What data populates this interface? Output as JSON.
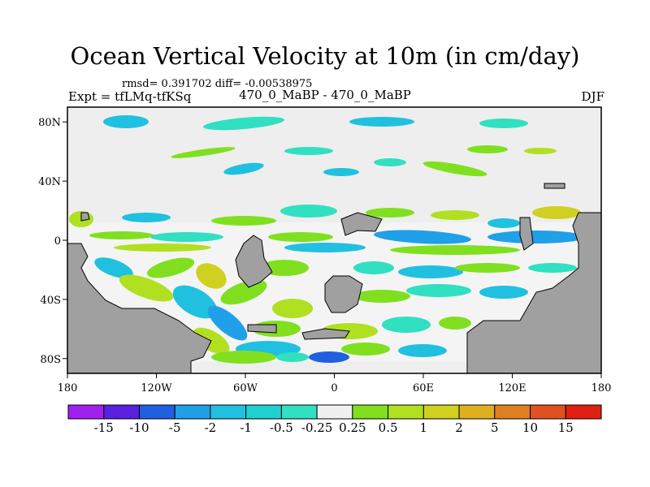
{
  "chart_data": {
    "type": "heatmap",
    "title": "Ocean Vertical Velocity at 10m (in cm/day)",
    "stats_text": "rmsd= 0.391702 diff= -0.00538975",
    "left_label": "Expt = tfLMq-tfKSq",
    "center_label": "470_0_MaBP - 470_0_MaBP",
    "right_label": "DJF",
    "xlim": [
      -180,
      180
    ],
    "ylim": [
      -90,
      90
    ],
    "x_ticks": [
      {
        "value": -180,
        "label": "180"
      },
      {
        "value": -120,
        "label": "120W"
      },
      {
        "value": -60,
        "label": "60W"
      },
      {
        "value": 0,
        "label": "0"
      },
      {
        "value": 60,
        "label": "60E"
      },
      {
        "value": 120,
        "label": "120E"
      },
      {
        "value": 180,
        "label": "180"
      }
    ],
    "y_ticks": [
      {
        "value": 80,
        "label": "80N"
      },
      {
        "value": 40,
        "label": "40N"
      },
      {
        "value": 0,
        "label": "0"
      },
      {
        "value": -40,
        "label": "40S"
      },
      {
        "value": -80,
        "label": "80S"
      }
    ],
    "colorbar": {
      "labels": [
        "-15",
        "-10",
        "-5",
        "-2",
        "-1",
        "-0.5",
        "-0.25",
        "0.25",
        "0.5",
        "1",
        "2",
        "5",
        "10",
        "15"
      ],
      "colors": [
        "#a020f0",
        "#5a20e0",
        "#2060e0",
        "#20a0e8",
        "#20c0e0",
        "#20d0d0",
        "#30e0c0",
        "#f0f0f0",
        "#80e020",
        "#b0e020",
        "#d0d020",
        "#e0b020",
        "#e08020",
        "#e05020",
        "#e02010"
      ]
    },
    "background_color": "#eeeeee",
    "land_color": "#a0a0a0"
  }
}
